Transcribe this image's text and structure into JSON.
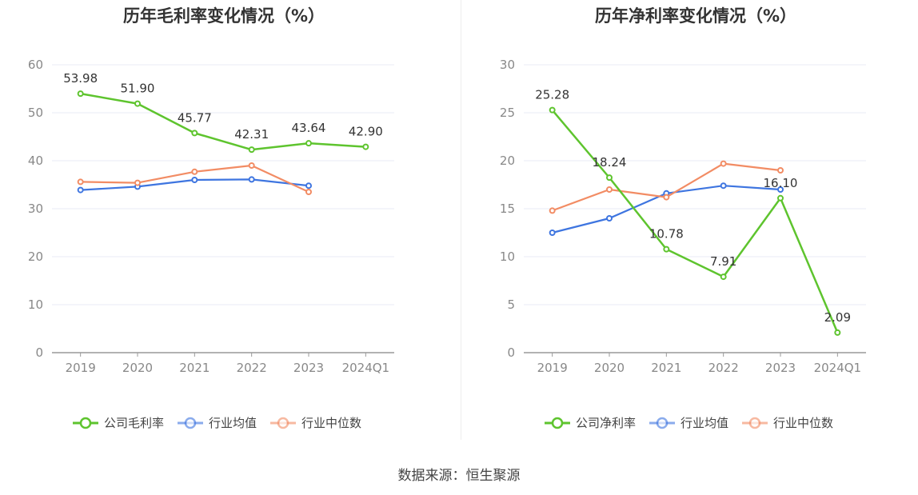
{
  "colors": {
    "company": "#5ec42e",
    "avg": "#3e75e0",
    "median": "#f28c64",
    "grid": "#e8ebf5",
    "axis": "#999999"
  },
  "chart_data": [
    {
      "type": "line",
      "title": "历年毛利率变化情况（%）",
      "categories": [
        "2019",
        "2020",
        "2021",
        "2022",
        "2023",
        "2024Q1"
      ],
      "ylim": [
        0,
        60
      ],
      "yticks": [
        0,
        10,
        20,
        30,
        40,
        50,
        60
      ],
      "series": [
        {
          "name": "公司毛利率",
          "key": "company",
          "values": [
            53.98,
            51.9,
            45.77,
            42.31,
            43.64,
            42.9
          ],
          "labels": [
            "53.98",
            "51.90",
            "45.77",
            "42.31",
            "43.64",
            "42.90"
          ]
        },
        {
          "name": "行业均值",
          "key": "avg",
          "values": [
            33.9,
            34.6,
            36.0,
            36.1,
            34.8,
            null
          ]
        },
        {
          "name": "行业中位数",
          "key": "median",
          "values": [
            35.6,
            35.4,
            37.7,
            39.0,
            33.5,
            null
          ]
        }
      ]
    },
    {
      "type": "line",
      "title": "历年净利率变化情况（%）",
      "categories": [
        "2019",
        "2020",
        "2021",
        "2022",
        "2023",
        "2024Q1"
      ],
      "ylim": [
        0,
        30
      ],
      "yticks": [
        0,
        5,
        10,
        15,
        20,
        25,
        30
      ],
      "series": [
        {
          "name": "公司净利率",
          "key": "company",
          "values": [
            25.28,
            18.24,
            10.78,
            7.91,
            16.1,
            2.09
          ],
          "labels": [
            "25.28",
            "18.24",
            "10.78",
            "7.91",
            "16.10",
            "2.09"
          ]
        },
        {
          "name": "行业均值",
          "key": "avg",
          "values": [
            12.5,
            14.0,
            16.6,
            17.4,
            17.0,
            null
          ]
        },
        {
          "name": "行业中位数",
          "key": "median",
          "values": [
            14.8,
            17.0,
            16.2,
            19.7,
            19.0,
            null
          ]
        }
      ]
    }
  ],
  "footer": {
    "source": "数据来源：恒生聚源"
  }
}
